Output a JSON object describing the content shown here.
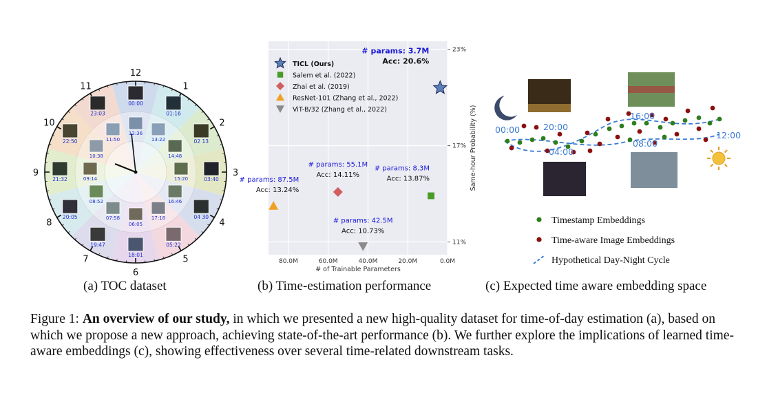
{
  "panel_a": {
    "clock_numbers": [
      "12",
      "1",
      "2",
      "3",
      "4",
      "5",
      "6",
      "7",
      "8",
      "9",
      "10",
      "11"
    ],
    "outer_photos": [
      {
        "time": "00:00",
        "tone": "#2a2a30"
      },
      {
        "time": "01:16",
        "tone": "#22303a"
      },
      {
        "time": "02 13",
        "tone": "#3a3a25"
      },
      {
        "time": "03:40",
        "tone": "#20232a"
      },
      {
        "time": "04 30",
        "tone": "#2a3030"
      },
      {
        "time": "05:22",
        "tone": "#7a6a70"
      },
      {
        "time": "18:01",
        "tone": "#4a5570"
      },
      {
        "time": "19:47",
        "tone": "#3a3a3a"
      },
      {
        "time": "20:05",
        "tone": "#30303a"
      },
      {
        "time": "21:32",
        "tone": "#303b30"
      },
      {
        "time": "22:50",
        "tone": "#4a4530"
      },
      {
        "time": "23:03",
        "tone": "#2a2a2a"
      }
    ],
    "inner_photos": [
      {
        "time": "12:36",
        "tone": "#7c8fa8"
      },
      {
        "time": "13:22",
        "tone": "#8aa0b8"
      },
      {
        "time": "14:48",
        "tone": "#5a6a52"
      },
      {
        "time": "15:20",
        "tone": "#5e6d4c"
      },
      {
        "time": "16:46",
        "tone": "#6a7a66"
      },
      {
        "time": "17:18",
        "tone": "#7b7f8a"
      },
      {
        "time": "06:05",
        "tone": "#6f6a5c"
      },
      {
        "time": "07:58",
        "tone": "#7d8c8a"
      },
      {
        "time": "08:52",
        "tone": "#6a8a5a"
      },
      {
        "time": "09:14",
        "tone": "#6f6a4e"
      },
      {
        "time": "10:38",
        "tone": "#8e9aa8"
      },
      {
        "time": "11:50",
        "tone": "#8a9eb4"
      }
    ],
    "caption": "(a) TOC dataset"
  },
  "chart_data": {
    "type": "scatter",
    "xlabel": "# of Trainable Parameters",
    "ylabel": "Same-hour Probability (%)",
    "x_unit": "M parameters",
    "y_unit": "%",
    "x_inverted": true,
    "xlim": [
      90,
      0
    ],
    "ylim": [
      10.2,
      23.5
    ],
    "x_ticks": [
      {
        "value": 80,
        "label": "80.0M"
      },
      {
        "value": 60,
        "label": "60.0M"
      },
      {
        "value": 40,
        "label": "40.0M"
      },
      {
        "value": 20,
        "label": "20.0M"
      },
      {
        "value": 0,
        "label": "0.0M"
      }
    ],
    "y_ticks": [
      {
        "value": 23,
        "label": "23%"
      },
      {
        "value": 17,
        "label": "17%"
      },
      {
        "value": 11,
        "label": "11%"
      }
    ],
    "y_axis_side": "right",
    "grid": true,
    "legend_position": "top-left",
    "points": [
      {
        "name": "TICL (Ours)",
        "marker": "star",
        "color": "#5b7fb8",
        "x": 3.7,
        "y": 20.6,
        "param_label": "# params: 3.7M",
        "acc_label": "Acc: 20.6%",
        "bold": true
      },
      {
        "name": "Salem et al. (2022)",
        "marker": "square",
        "color": "#4a9a2a",
        "x": 8.3,
        "y": 13.87,
        "param_label": "# params: 8.3M",
        "acc_label": "Acc: 13.87%",
        "bold": false
      },
      {
        "name": "Zhai et al. (2019)",
        "marker": "diamond",
        "color": "#d15f5f",
        "x": 55.1,
        "y": 14.11,
        "param_label": "# params: 55.1M",
        "acc_label": "Acc: 14.11%",
        "bold": false
      },
      {
        "name": "ResNet-101 (Zhang et al., 2022)",
        "marker": "triangle-up",
        "color": "#f0a020",
        "x": 87.5,
        "y": 13.24,
        "param_label": "# params: 87.5M",
        "acc_label": "Acc: 13.24%",
        "bold": false
      },
      {
        "name": "ViT-B/32 (Zhang et al., 2022)",
        "marker": "triangle-down",
        "color": "#8c8c8c",
        "x": 42.5,
        "y": 10.73,
        "param_label": "# params: 42.5M",
        "acc_label": "Acc: 10.73%",
        "bold": false
      }
    ],
    "caption": "(b) Time-estimation performance"
  },
  "panel_c": {
    "time_labels": [
      "00:00",
      "20:00",
      "04:00",
      "16:00",
      "08:00",
      "12:00"
    ],
    "legend": [
      {
        "label": "Timestamp Embeddings",
        "color": "#2e7d1e",
        "kind": "dot"
      },
      {
        "label": "Time-aware Image Embeddings",
        "color": "#8b1010",
        "kind": "dot"
      },
      {
        "label": "Hypothetical Day-Night Cycle",
        "color": "#3a7bd5",
        "kind": "dash"
      }
    ],
    "caption": "(c) Expected time aware embedding space"
  },
  "figure": {
    "label": "Figure 1:",
    "bold": "An overview of our study,",
    "text": "in which we presented a new high-quality dataset for time-of-day estimation (a), based on which we propose a new approach, achieving state-of-the-art performance (b). We further explore the implications of learned time-aware embeddings (c), showing effectiveness over several time-related downstream tasks."
  }
}
